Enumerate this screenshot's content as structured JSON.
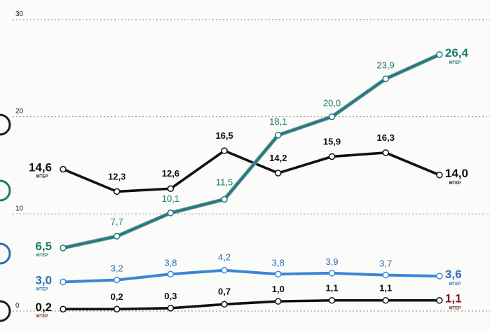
{
  "chart_data": {
    "type": "line",
    "ylim": [
      0,
      30
    ],
    "y_ticks": [
      0,
      10,
      20,
      30
    ],
    "y_tick_labels": [
      "0",
      "10",
      "20",
      "30"
    ],
    "grid": true,
    "unit_label": "МТЕР",
    "series": [
      {
        "color": "#111111",
        "values": [
          14.6,
          12.3,
          12.6,
          16.5,
          14.2,
          15.9,
          16.3,
          14.0
        ],
        "labels": [
          "14,6",
          "12,3",
          "12,6",
          "16,5",
          "14,2",
          "15,9",
          "16,3",
          "14,0"
        ],
        "label_color": "#111111"
      },
      {
        "color": "#1f7d84",
        "values": [
          6.5,
          7.7,
          10.1,
          11.5,
          18.1,
          20.0,
          23.9,
          26.4
        ],
        "labels": [
          "6,5",
          "7,7",
          "10,1",
          "11,5",
          "18,1",
          "20,0",
          "23,9",
          "26,4"
        ],
        "label_color": "#1e7a6a"
      },
      {
        "color": "#3a86d8",
        "values": [
          3.0,
          3.2,
          3.8,
          4.2,
          3.8,
          3.9,
          3.7,
          3.6
        ],
        "labels": [
          "3,0",
          "3,2",
          "3,8",
          "4,2",
          "3,8",
          "3,9",
          "3,7",
          "3,6"
        ],
        "label_color": "#2e6db8"
      },
      {
        "color": "#111111",
        "values": [
          0.2,
          0.2,
          0.3,
          0.7,
          1.0,
          1.1,
          1.1,
          1.1
        ],
        "labels": [
          "0,2",
          "0,2",
          "0,3",
          "0,7",
          "1,0",
          "1,1",
          "1,1",
          "1,1"
        ],
        "label_color": "#111111",
        "end_label_color": "#7a1a2a"
      }
    ]
  }
}
